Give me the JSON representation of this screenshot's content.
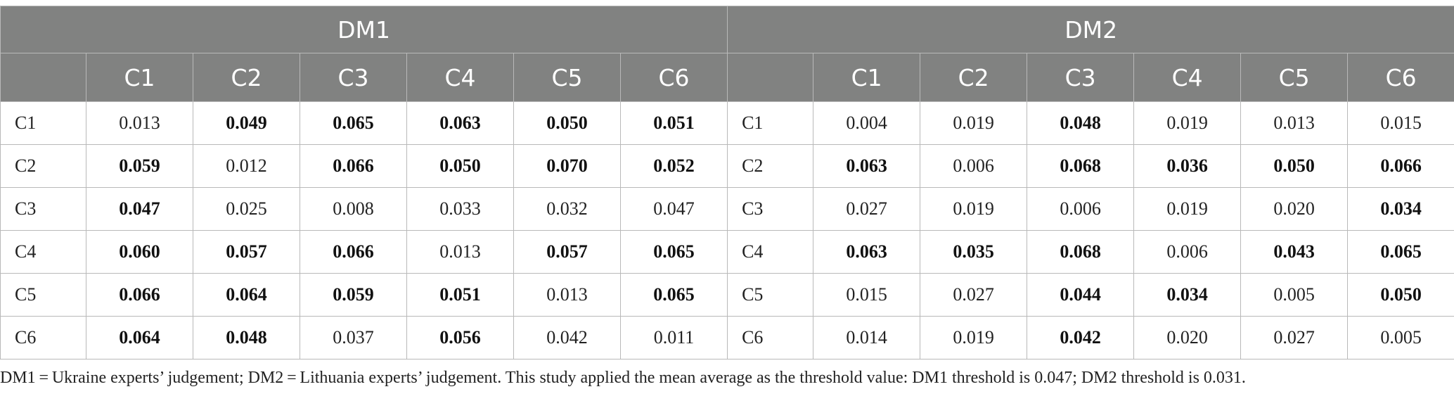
{
  "groups": [
    "DM1",
    "DM2"
  ],
  "columns": [
    "C1",
    "C2",
    "C3",
    "C4",
    "C5",
    "C6"
  ],
  "rows": [
    {
      "label": "C1",
      "dm1": [
        {
          "v": "0.013",
          "b": false
        },
        {
          "v": "0.049",
          "b": true
        },
        {
          "v": "0.065",
          "b": true
        },
        {
          "v": "0.063",
          "b": true
        },
        {
          "v": "0.050",
          "b": true
        },
        {
          "v": "0.051",
          "b": true
        }
      ],
      "dm2_label": "C1",
      "dm2": [
        {
          "v": "0.004",
          "b": false
        },
        {
          "v": "0.019",
          "b": false
        },
        {
          "v": "0.048",
          "b": true
        },
        {
          "v": "0.019",
          "b": false
        },
        {
          "v": "0.013",
          "b": false
        },
        {
          "v": "0.015",
          "b": false
        }
      ]
    },
    {
      "label": "C2",
      "dm1": [
        {
          "v": "0.059",
          "b": true
        },
        {
          "v": "0.012",
          "b": false
        },
        {
          "v": "0.066",
          "b": true
        },
        {
          "v": "0.050",
          "b": true
        },
        {
          "v": "0.070",
          "b": true
        },
        {
          "v": "0.052",
          "b": true
        }
      ],
      "dm2_label": "C2",
      "dm2": [
        {
          "v": "0.063",
          "b": true
        },
        {
          "v": "0.006",
          "b": false
        },
        {
          "v": "0.068",
          "b": true
        },
        {
          "v": "0.036",
          "b": true
        },
        {
          "v": "0.050",
          "b": true
        },
        {
          "v": "0.066",
          "b": true
        }
      ]
    },
    {
      "label": "C3",
      "dm1": [
        {
          "v": "0.047",
          "b": true
        },
        {
          "v": "0.025",
          "b": false
        },
        {
          "v": "0.008",
          "b": false
        },
        {
          "v": "0.033",
          "b": false
        },
        {
          "v": "0.032",
          "b": false
        },
        {
          "v": "0.047",
          "b": false
        }
      ],
      "dm2_label": "C3",
      "dm2": [
        {
          "v": "0.027",
          "b": false
        },
        {
          "v": "0.019",
          "b": false
        },
        {
          "v": "0.006",
          "b": false
        },
        {
          "v": "0.019",
          "b": false
        },
        {
          "v": "0.020",
          "b": false
        },
        {
          "v": "0.034",
          "b": true
        }
      ]
    },
    {
      "label": "C4",
      "dm1": [
        {
          "v": "0.060",
          "b": true
        },
        {
          "v": "0.057",
          "b": true
        },
        {
          "v": "0.066",
          "b": true
        },
        {
          "v": "0.013",
          "b": false
        },
        {
          "v": "0.057",
          "b": true
        },
        {
          "v": "0.065",
          "b": true
        }
      ],
      "dm2_label": "C4",
      "dm2": [
        {
          "v": "0.063",
          "b": true
        },
        {
          "v": "0.035",
          "b": true
        },
        {
          "v": "0.068",
          "b": true
        },
        {
          "v": "0.006",
          "b": false
        },
        {
          "v": "0.043",
          "b": true
        },
        {
          "v": "0.065",
          "b": true
        }
      ]
    },
    {
      "label": "C5",
      "dm1": [
        {
          "v": "0.066",
          "b": true
        },
        {
          "v": "0.064",
          "b": true
        },
        {
          "v": "0.059",
          "b": true
        },
        {
          "v": "0.051",
          "b": true
        },
        {
          "v": "0.013",
          "b": false
        },
        {
          "v": "0.065",
          "b": true
        }
      ],
      "dm2_label": "C5",
      "dm2": [
        {
          "v": "0.015",
          "b": false
        },
        {
          "v": "0.027",
          "b": false
        },
        {
          "v": "0.044",
          "b": true
        },
        {
          "v": "0.034",
          "b": true
        },
        {
          "v": "0.005",
          "b": false
        },
        {
          "v": "0.050",
          "b": true
        }
      ]
    },
    {
      "label": "C6",
      "dm1": [
        {
          "v": "0.064",
          "b": true
        },
        {
          "v": "0.048",
          "b": true
        },
        {
          "v": "0.037",
          "b": false
        },
        {
          "v": "0.056",
          "b": true
        },
        {
          "v": "0.042",
          "b": false
        },
        {
          "v": "0.011",
          "b": false
        }
      ],
      "dm2_label": "C6",
      "dm2": [
        {
          "v": "0.014",
          "b": false
        },
        {
          "v": "0.019",
          "b": false
        },
        {
          "v": "0.042",
          "b": true
        },
        {
          "v": "0.020",
          "b": false
        },
        {
          "v": "0.027",
          "b": false
        },
        {
          "v": "0.005",
          "b": false
        }
      ]
    }
  ],
  "footnote": "DM1 = Ukraine experts’ judgement; DM2 = Lithuania experts’ judgement. This study applied the mean average as the threshold value: DM1 threshold is 0.047; DM2 threshold is 0.031."
}
